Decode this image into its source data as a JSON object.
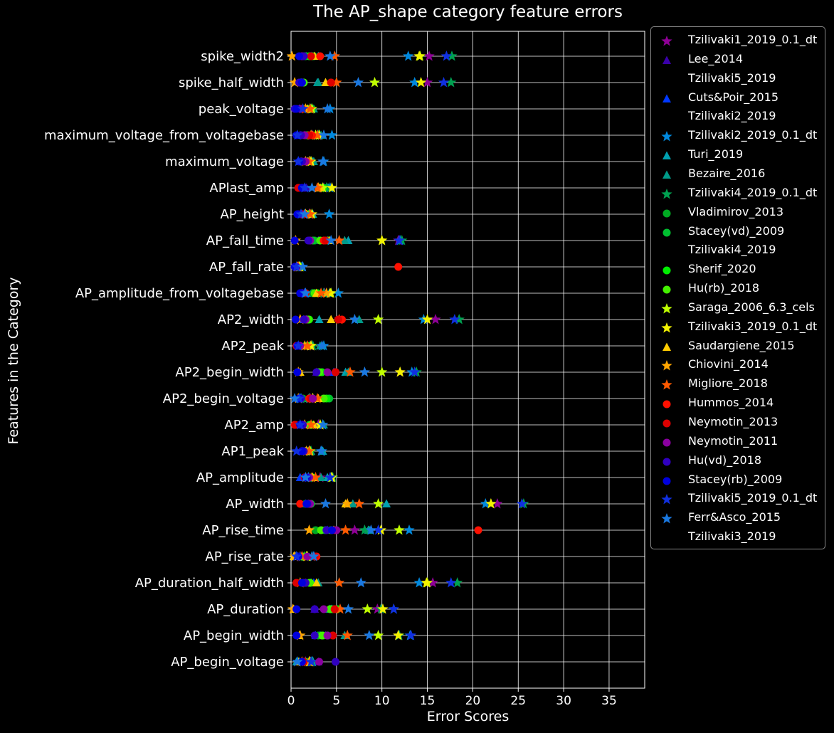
{
  "chart_data": {
    "type": "scatter",
    "title": "The AP_shape category feature errors",
    "xlabel": "Error Scores",
    "ylabel": "Features in the Category",
    "xlim": [
      0,
      39
    ],
    "xticks": [
      0,
      5,
      10,
      15,
      20,
      25,
      30,
      35
    ],
    "grid": true,
    "legend_placement": "outside-right",
    "categories": [
      "AP_begin_voltage",
      "AP_begin_width",
      "AP_duration",
      "AP_duration_half_width",
      "AP_rise_rate",
      "AP_rise_time",
      "AP_width",
      "AP_amplitude",
      "AP1_peak",
      "AP2_amp",
      "AP2_begin_voltage",
      "AP2_begin_width",
      "AP2_peak",
      "AP2_width",
      "AP_amplitude_from_voltagebase",
      "AP_fall_rate",
      "AP_fall_time",
      "AP_height",
      "APlast_amp",
      "maximum_voltage",
      "maximum_voltage_from_voltagebase",
      "peak_voltage",
      "spike_half_width",
      "spike_width2"
    ],
    "series": [
      {
        "name": "Tzilivaki1_2019_0.1_dt",
        "marker": "star",
        "color": "#8e0096",
        "values": [
          1.6,
          11.8,
          9.5,
          15.6,
          1.0,
          7.0,
          22.7,
          3.2,
          2.0,
          3.0,
          2.1,
          12.0,
          2.1,
          15.9,
          3.7,
          0.8,
          11.8,
          2.0,
          3.6,
          2.1,
          2.3,
          2.1,
          15.0,
          15.2
        ]
      },
      {
        "name": "Lee_2014",
        "marker": "triangle",
        "color": "#3a00aa",
        "values": [
          3.0,
          3.8,
          2.6,
          1.6,
          1.0,
          4.7,
          1.9,
          1.9,
          1.9,
          1.2,
          1.0,
          2.8,
          1.7,
          1.7,
          1.6,
          0.8,
          3.0,
          1.6,
          1.7,
          1.5,
          1.5,
          1.6,
          1.2,
          1.7
        ]
      },
      {
        "name": "Tzilivaki5_2019",
        "marker": "none",
        "color": "#000000",
        "values": []
      },
      {
        "name": "Cuts&Poir_2015",
        "marker": "triangle",
        "color": "#0038ff",
        "values": [
          1.2,
          2.7,
          4.4,
          2.5,
          0.6,
          4.0,
          1.6,
          1.0,
          1.2,
          1.0,
          0.8,
          4.7,
          1.0,
          1.4,
          1.2,
          1.1,
          4.0,
          1.2,
          1.5,
          1.1,
          1.0,
          0.9,
          1.1,
          2.2
        ]
      },
      {
        "name": "Tzilivaki2_2019",
        "marker": "none",
        "color": "#000000",
        "values": []
      },
      {
        "name": "Tzilivaki2_2019_0.1_dt",
        "marker": "star",
        "color": "#0088dd",
        "values": [
          2.4,
          13.1,
          11.3,
          14.1,
          2.3,
          13.0,
          21.4,
          1.9,
          3.4,
          3.5,
          1.1,
          13.3,
          3.6,
          14.6,
          5.2,
          1.2,
          12.0,
          4.2,
          4.3,
          3.6,
          4.5,
          4.3,
          13.6,
          12.9
        ]
      },
      {
        "name": "Turi_2019",
        "marker": "triangle",
        "color": "#00a0b0",
        "values": [
          0.6,
          3.2,
          4.5,
          2.2,
          0.5,
          8.6,
          10.5,
          4.0,
          3.5,
          3.2,
          1.0,
          6.0,
          3.4,
          3.1,
          2.3,
          1.0,
          6.3,
          2.4,
          4.1,
          2.4,
          2.4,
          2.3,
          2.9,
          2.6
        ]
      },
      {
        "name": "Bezaire_2016",
        "marker": "triangle",
        "color": "#009a88",
        "values": [
          0.9,
          5.9,
          4.2,
          3.0,
          0.7,
          8.5,
          6.8,
          3.3,
          2.2,
          3.6,
          1.9,
          6.3,
          3.2,
          7.5,
          4.2,
          1.2,
          5.9,
          2.0,
          4.0,
          2.5,
          3.3,
          2.5,
          3.0,
          3.0
        ]
      },
      {
        "name": "Tzilivaki4_2019_0.1_dt",
        "marker": "star",
        "color": "#00a050",
        "values": [
          2.3,
          11.9,
          9.9,
          18.3,
          1.5,
          8.1,
          25.6,
          4.6,
          2.2,
          3.5,
          2.0,
          13.8,
          2.4,
          18.5,
          3.6,
          0.9,
          12.2,
          2.3,
          3.9,
          2.1,
          3.0,
          2.2,
          17.6,
          17.7
        ]
      },
      {
        "name": "Vladimirov_2013",
        "marker": "circle",
        "color": "#00aa22",
        "values": [
          1.7,
          3.0,
          4.6,
          1.6,
          1.2,
          2.7,
          1.6,
          1.7,
          1.5,
          2.0,
          1.3,
          2.9,
          1.6,
          1.8,
          2.4,
          0.7,
          2.6,
          1.9,
          3.3,
          1.7,
          2.2,
          1.5,
          1.3,
          2.5
        ]
      },
      {
        "name": "Stacey(vd)_2009",
        "marker": "circle",
        "color": "#00c030",
        "values": [
          1.3,
          4.0,
          4.4,
          2.0,
          0.9,
          3.8,
          2.2,
          2.0,
          2.0,
          2.1,
          4.2,
          3.0,
          1.9,
          1.7,
          1.6,
          0.6,
          2.4,
          2.0,
          3.6,
          2.0,
          1.6,
          2.3,
          1.2,
          1.6
        ]
      },
      {
        "name": "Tzilivaki4_2019",
        "marker": "none",
        "color": "#000000",
        "values": []
      },
      {
        "name": "Sherif_2020",
        "marker": "circle",
        "color": "#00ee00",
        "values": [
          1.5,
          3.5,
          5.1,
          2.1,
          1.4,
          4.4,
          1.9,
          2.4,
          1.8,
          2.3,
          3.9,
          3.4,
          2.0,
          2.0,
          2.9,
          1.0,
          4.1,
          2.0,
          3.5,
          1.8,
          1.8,
          1.9,
          1.4,
          2.0
        ]
      },
      {
        "name": "Hu(rb)_2018",
        "marker": "circle",
        "color": "#44f000",
        "values": [
          1.5,
          3.4,
          4.3,
          2.1,
          1.3,
          3.3,
          2.1,
          2.1,
          1.8,
          2.2,
          3.6,
          3.1,
          1.9,
          1.9,
          2.6,
          0.9,
          3.2,
          2.0,
          3.2,
          1.8,
          1.9,
          2.1,
          1.4,
          2.3
        ]
      },
      {
        "name": "Saraga_2006_6.3_cels",
        "marker": "star",
        "color": "#c0ff00",
        "values": [
          2.1,
          9.6,
          8.4,
          15.0,
          1.7,
          11.9,
          9.6,
          4.4,
          2.1,
          3.2,
          2.4,
          10.0,
          2.2,
          9.6,
          4.4,
          1.0,
          10.0,
          2.1,
          3.5,
          2.0,
          2.7,
          2.3,
          9.2,
          14.2
        ]
      },
      {
        "name": "Tzilivaki3_2019_0.1_dt",
        "marker": "star",
        "color": "#f2f200",
        "values": [
          2.0,
          11.8,
          10.1,
          14.9,
          1.8,
          9.9,
          22.0,
          4.5,
          2.0,
          3.2,
          2.4,
          12.0,
          2.2,
          15.0,
          4.3,
          0.9,
          10.0,
          2.3,
          4.5,
          2.2,
          3.1,
          2.1,
          14.3,
          14.1
        ]
      },
      {
        "name": "Saudargiene_2015",
        "marker": "triangle",
        "color": "#ffcc00",
        "values": [
          0.8,
          0.9,
          0.3,
          2.8,
          0.3,
          4.7,
          6.0,
          2.4,
          1.6,
          2.5,
          3.0,
          1.0,
          1.8,
          4.4,
          2.8,
          0.6,
          4.2,
          1.7,
          3.2,
          1.8,
          2.4,
          1.8,
          3.8,
          2.6
        ]
      },
      {
        "name": "Chiovini_2014",
        "marker": "star",
        "color": "#ffa500",
        "values": [
          2.0,
          1.0,
          0.2,
          1.0,
          0.4,
          2.0,
          6.2,
          2.3,
          1.7,
          1.5,
          0.8,
          0.8,
          1.5,
          1.0,
          3.9,
          0.7,
          0.5,
          1.6,
          3.0,
          1.6,
          2.2,
          1.6,
          0.4,
          0.1
        ]
      },
      {
        "name": "Migliore_2018",
        "marker": "star",
        "color": "#ff5a00",
        "values": [
          1.2,
          6.2,
          5.4,
          5.3,
          1.2,
          6.0,
          7.5,
          2.7,
          2.0,
          2.2,
          2.9,
          6.5,
          1.8,
          5.3,
          3.3,
          0.8,
          5.3,
          2.1,
          2.9,
          2.0,
          2.9,
          2.1,
          5.0,
          4.8
        ]
      },
      {
        "name": "Hummos_2014",
        "marker": "circle",
        "color": "#ff1000",
        "values": [
          1.4,
          4.6,
          4.8,
          0.6,
          2.8,
          20.6,
          1.0,
          1.5,
          1.3,
          0.4,
          2.0,
          4.9,
          0.6,
          5.6,
          1.6,
          11.8,
          3.6,
          1.4,
          0.8,
          1.2,
          2.3,
          1.2,
          4.4,
          3.2
        ]
      },
      {
        "name": "Neymotin_2013",
        "marker": "circle",
        "color": "#dd0000",
        "values": [
          1.4,
          4.6,
          4.8,
          0.6,
          2.6,
          4.9,
          2.0,
          1.5,
          1.3,
          0.5,
          2.2,
          4.9,
          0.6,
          5.2,
          1.6,
          0.4,
          3.8,
          1.4,
          0.8,
          1.2,
          2.0,
          1.2,
          4.4,
          2.2
        ]
      },
      {
        "name": "Neymotin_2011",
        "marker": "circle",
        "color": "#8a00a0",
        "values": [
          3.1,
          4.0,
          3.6,
          1.4,
          1.8,
          5.0,
          2.1,
          2.0,
          1.2,
          1.2,
          2.4,
          4.0,
          1.0,
          1.6,
          1.2,
          0.5,
          2.1,
          1.1,
          1.2,
          1.6,
          1.5,
          1.0,
          1.2,
          1.2
        ]
      },
      {
        "name": "Hu(vd)_2018",
        "marker": "circle",
        "color": "#3000c0",
        "values": [
          4.9,
          2.6,
          2.6,
          1.6,
          0.8,
          3.9,
          1.8,
          1.8,
          1.4,
          1.3,
          1.1,
          2.8,
          0.7,
          1.4,
          1.2,
          0.6,
          1.9,
          0.8,
          1.5,
          1.2,
          1.1,
          0.4,
          0.9,
          1.4
        ]
      },
      {
        "name": "Stacey(rb)_2009",
        "marker": "circle",
        "color": "#0000dd",
        "values": [
          1.2,
          0.6,
          0.6,
          1.2,
          0.8,
          4.5,
          1.7,
          1.6,
          1.2,
          1.0,
          0.9,
          0.7,
          0.7,
          0.5,
          1.0,
          0.4,
          0.4,
          0.7,
          1.2,
          0.9,
          0.6,
          0.6,
          1.2,
          0.9
        ]
      },
      {
        "name": "Tzilivaki5_2019_0.1_dt",
        "marker": "star",
        "color": "#1030e0",
        "values": [
          2.2,
          13.2,
          11.3,
          17.6,
          0.6,
          9.6,
          25.4,
          4.3,
          0.6,
          1.0,
          0.9,
          13.6,
          0.8,
          18.0,
          1.5,
          0.6,
          11.9,
          1.1,
          1.5,
          0.8,
          0.7,
          1.3,
          16.8,
          17.1
        ]
      },
      {
        "name": "Ferr&Asco_2015",
        "marker": "star",
        "color": "#1a78e0",
        "values": [
          0.7,
          8.6,
          6.3,
          7.7,
          2.5,
          8.8,
          3.8,
          1.6,
          3.3,
          3.5,
          0.4,
          8.1,
          3.4,
          7.0,
          1.6,
          1.3,
          4.4,
          1.5,
          2.3,
          3.5,
          3.6,
          4.0,
          7.4,
          4.3
        ]
      },
      {
        "name": "Tzilivaki3_2019",
        "marker": "none",
        "color": "#000000",
        "values": []
      }
    ]
  }
}
